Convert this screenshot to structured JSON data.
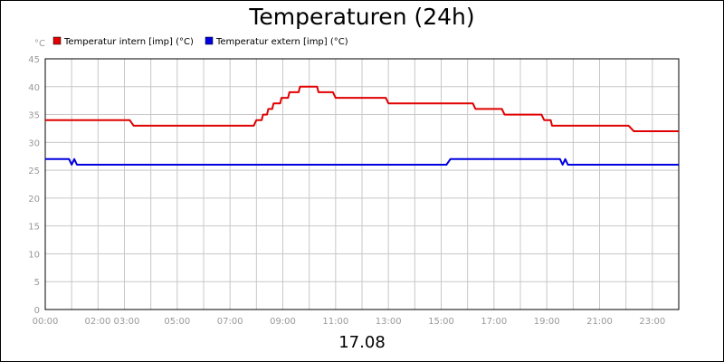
{
  "chart_data": {
    "type": "line",
    "title": "Temperaturen (24h)",
    "ylabel": "°C",
    "xlabel": "17.08",
    "ylim": [
      0,
      45
    ],
    "xlim_hours": [
      0,
      24
    ],
    "y_ticks": [
      0,
      5,
      10,
      15,
      20,
      25,
      30,
      35,
      40,
      45
    ],
    "x_ticks": [
      {
        "h": 0,
        "label": "00:00"
      },
      {
        "h": 2,
        "label": "02:00"
      },
      {
        "h": 3,
        "label": "03:00"
      },
      {
        "h": 5,
        "label": "05:00"
      },
      {
        "h": 7,
        "label": "07:00"
      },
      {
        "h": 9,
        "label": "09:00"
      },
      {
        "h": 11,
        "label": "11:00"
      },
      {
        "h": 13,
        "label": "13:00"
      },
      {
        "h": 15,
        "label": "15:00"
      },
      {
        "h": 17,
        "label": "17:00"
      },
      {
        "h": 19,
        "label": "19:00"
      },
      {
        "h": 21,
        "label": "21:00"
      },
      {
        "h": 23,
        "label": "23:00"
      }
    ],
    "grid": true,
    "legend_position": "top-left",
    "series": [
      {
        "name": "Temperatur intern [imp] (°C)",
        "color": "#e00000",
        "points": [
          [
            0.0,
            34
          ],
          [
            3.2,
            34
          ],
          [
            3.35,
            33
          ],
          [
            7.9,
            33
          ],
          [
            8.0,
            34
          ],
          [
            8.2,
            34
          ],
          [
            8.25,
            35
          ],
          [
            8.4,
            35
          ],
          [
            8.45,
            36
          ],
          [
            8.6,
            36
          ],
          [
            8.65,
            37
          ],
          [
            8.9,
            37
          ],
          [
            8.95,
            38
          ],
          [
            9.2,
            38
          ],
          [
            9.25,
            39
          ],
          [
            9.6,
            39
          ],
          [
            9.65,
            40
          ],
          [
            10.3,
            40
          ],
          [
            10.35,
            39
          ],
          [
            10.9,
            39
          ],
          [
            11.0,
            38
          ],
          [
            12.9,
            38
          ],
          [
            13.0,
            37
          ],
          [
            16.2,
            37
          ],
          [
            16.3,
            36
          ],
          [
            17.3,
            36
          ],
          [
            17.4,
            35
          ],
          [
            18.8,
            35
          ],
          [
            18.9,
            34
          ],
          [
            19.15,
            34
          ],
          [
            19.2,
            33
          ],
          [
            22.1,
            33
          ],
          [
            22.3,
            32
          ],
          [
            24.0,
            32
          ]
        ]
      },
      {
        "name": "Temperatur extern [imp] (°C)",
        "color": "#0000e0",
        "points": [
          [
            0.0,
            27
          ],
          [
            0.9,
            27
          ],
          [
            1.0,
            26
          ],
          [
            1.1,
            27
          ],
          [
            1.2,
            26
          ],
          [
            15.2,
            26
          ],
          [
            15.35,
            27
          ],
          [
            19.5,
            27
          ],
          [
            19.6,
            26
          ],
          [
            19.7,
            27
          ],
          [
            19.8,
            26
          ],
          [
            24.0,
            26
          ]
        ]
      }
    ]
  }
}
